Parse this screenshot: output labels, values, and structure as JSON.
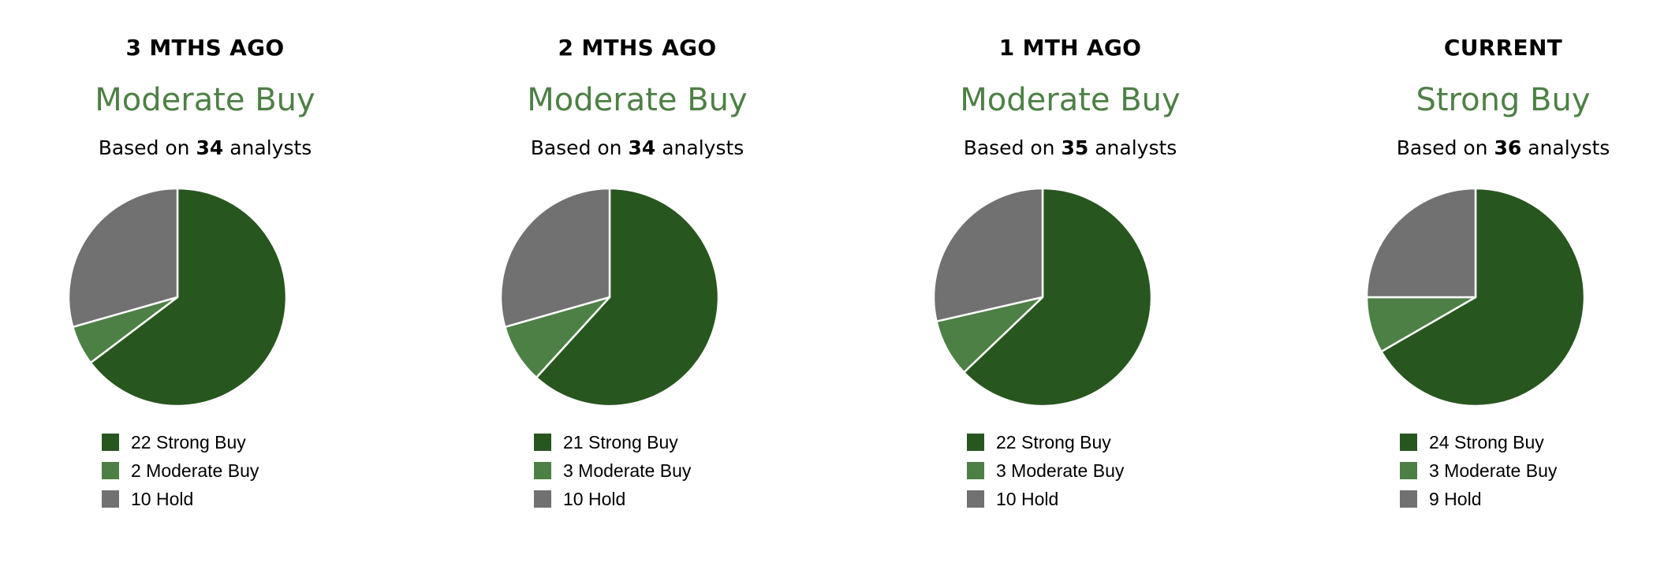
{
  "colors": {
    "strong_buy": "#28561f",
    "moderate_buy": "#4d8045",
    "hold": "#717171",
    "rating_text": "#4d8045"
  },
  "panels": [
    {
      "period": "3 MTHS AGO",
      "rating": "Moderate Buy",
      "based_prefix": "Based on",
      "analysts": "34",
      "based_suffix": "analysts",
      "legend": [
        "22 Strong Buy",
        "2 Moderate Buy",
        "10 Hold"
      ]
    },
    {
      "period": "2 MTHS AGO",
      "rating": "Moderate Buy",
      "based_prefix": "Based on",
      "analysts": "34",
      "based_suffix": "analysts",
      "legend": [
        "21 Strong Buy",
        "3 Moderate Buy",
        "10 Hold"
      ]
    },
    {
      "period": "1 MTH AGO",
      "rating": "Moderate Buy",
      "based_prefix": "Based on",
      "analysts": "35",
      "based_suffix": "analysts",
      "legend": [
        "22 Strong Buy",
        "3 Moderate Buy",
        "10 Hold"
      ]
    },
    {
      "period": "CURRENT",
      "rating": "Strong Buy",
      "based_prefix": "Based on",
      "analysts": "36",
      "based_suffix": "analysts",
      "legend": [
        "24 Strong Buy",
        "3 Moderate Buy",
        "9 Hold"
      ]
    }
  ],
  "chart_data": [
    {
      "type": "pie",
      "title": "3 MTHS AGO",
      "categories": [
        "Strong Buy",
        "Moderate Buy",
        "Hold"
      ],
      "values": [
        22,
        2,
        10
      ]
    },
    {
      "type": "pie",
      "title": "2 MTHS AGO",
      "categories": [
        "Strong Buy",
        "Moderate Buy",
        "Hold"
      ],
      "values": [
        21,
        3,
        10
      ]
    },
    {
      "type": "pie",
      "title": "1 MTH AGO",
      "categories": [
        "Strong Buy",
        "Moderate Buy",
        "Hold"
      ],
      "values": [
        22,
        3,
        10
      ]
    },
    {
      "type": "pie",
      "title": "CURRENT",
      "categories": [
        "Strong Buy",
        "Moderate Buy",
        "Hold"
      ],
      "values": [
        24,
        3,
        9
      ]
    }
  ]
}
